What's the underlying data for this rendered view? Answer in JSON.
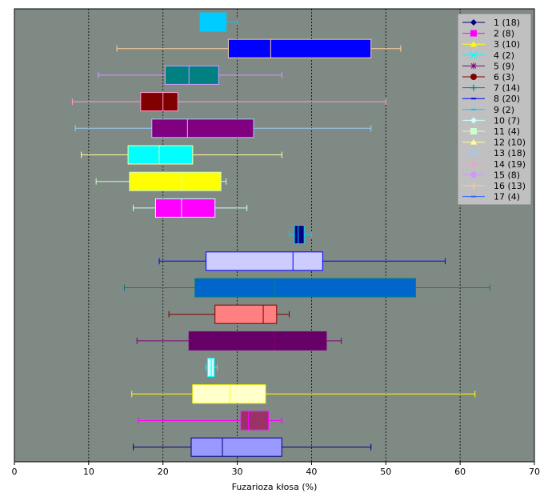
{
  "chart_data": {
    "type": "boxplot",
    "orientation": "horizontal",
    "xlabel": "Fuzarioza kłosa (%)",
    "xlim": [
      0,
      70
    ],
    "xticks": [
      0,
      10,
      20,
      30,
      40,
      50,
      60,
      70
    ],
    "grid": "x, dotted",
    "background": "#808a85",
    "legend_position": "top-right",
    "series": [
      {
        "name": "1 (18)",
        "color": "#000080",
        "marker": "diamond",
        "min": 16.0,
        "q1": 23.8,
        "median": 28.0,
        "q3": 36.0,
        "max": 48.0
      },
      {
        "name": "2 (8)",
        "color": "#ff00ff",
        "marker": "square",
        "min": 16.7,
        "q1": 30.5,
        "median": 31.5,
        "q3": 34.2,
        "max": 36.0
      },
      {
        "name": "3 (10)",
        "color": "#ffff00",
        "marker": "triangle",
        "min": 15.8,
        "q1": 24.0,
        "median": 29.0,
        "q3": 33.8,
        "max": 62.0
      },
      {
        "name": "4 (2)",
        "color": "#00ffff",
        "marker": "x",
        "min": 25.8,
        "q1": 26.0,
        "median": 26.5,
        "q3": 26.9,
        "max": 27.3
      },
      {
        "name": "5 (9)",
        "color": "#800080",
        "marker": "star",
        "min": 16.5,
        "q1": 23.5,
        "median": 35.0,
        "q3": 42.0,
        "max": 44.0
      },
      {
        "name": "6 (3)",
        "color": "#800000",
        "marker": "circle",
        "min": 20.8,
        "q1": 27.0,
        "median": 33.5,
        "q3": 35.3,
        "max": 37.0
      },
      {
        "name": "7 (14)",
        "color": "#008080",
        "marker": "plus",
        "min": 14.8,
        "q1": 24.3,
        "median": 35.0,
        "q3": 54.0,
        "max": 64.0
      },
      {
        "name": "8 (20)",
        "color": "#0000ff",
        "marker": "dash",
        "min": 19.5,
        "q1": 25.8,
        "median": 37.5,
        "q3": 41.5,
        "max": 58.0
      },
      {
        "name": "9 (2)",
        "color": "#00ccff",
        "marker": "dash",
        "min": 37.0,
        "q1": 37.7,
        "median": 38.2,
        "q3": 39.0,
        "max": 40.0
      },
      {
        "name": "10 (7)",
        "color": "#ccffff",
        "marker": "diamond",
        "min": 16.0,
        "q1": 19.0,
        "median": 22.5,
        "q3": 27.0,
        "max": 31.3
      },
      {
        "name": "11 (4)",
        "color": "#ccffcc",
        "marker": "square",
        "min": 11.0,
        "q1": 15.5,
        "median": 22.5,
        "q3": 27.8,
        "max": 28.5
      },
      {
        "name": "12 (10)",
        "color": "#ffff99",
        "marker": "triangle",
        "min": 9.0,
        "q1": 15.3,
        "median": 19.5,
        "q3": 24.0,
        "max": 36.0
      },
      {
        "name": "13 (18)",
        "color": "#99ccff",
        "marker": "x",
        "min": 8.2,
        "q1": 18.5,
        "median": 23.3,
        "q3": 32.2,
        "max": 48.0
      },
      {
        "name": "14 (19)",
        "color": "#ff99cc",
        "marker": "star",
        "min": 7.8,
        "q1": 17.0,
        "median": 20.0,
        "q3": 22.0,
        "max": 50.0
      },
      {
        "name": "15 (8)",
        "color": "#cc99ff",
        "marker": "circle",
        "min": 11.3,
        "q1": 20.3,
        "median": 23.5,
        "q3": 27.5,
        "max": 36.0
      },
      {
        "name": "16 (13)",
        "color": "#ffcc99",
        "marker": "plus",
        "min": 13.8,
        "q1": 28.8,
        "median": 34.5,
        "q3": 48.0,
        "max": 52.0
      },
      {
        "name": "17 (4)",
        "color": "#3366ff",
        "marker": "dash",
        "min": 25.0,
        "q1": 25.0,
        "median": 27.0,
        "q3": 28.5,
        "max": 30.0
      }
    ],
    "plot_rows": [
      {
        "box_color": "#00ccff",
        "whisker_color": "#00ccff",
        "min": 25.0,
        "q1": 25.0,
        "median": 27.0,
        "q3": 28.5,
        "max": 30.0
      },
      {
        "box_color": "#0000ff",
        "whisker_color": "#ffcc99",
        "min": 13.8,
        "q1": 28.8,
        "median": 34.5,
        "q3": 48.0,
        "max": 52.0
      },
      {
        "box_color": "#008080",
        "whisker_color": "#cc99ff",
        "min": 11.3,
        "q1": 20.3,
        "median": 23.5,
        "q3": 27.5,
        "max": 36.0
      },
      {
        "box_color": "#800000",
        "whisker_color": "#ff99cc",
        "min": 7.8,
        "q1": 17.0,
        "median": 20.0,
        "q3": 22.0,
        "max": 50.0
      },
      {
        "box_color": "#800080",
        "whisker_color": "#99ccff",
        "min": 8.2,
        "q1": 18.5,
        "median": 23.3,
        "q3": 32.2,
        "max": 48.0
      },
      {
        "box_color": "#00ffff",
        "whisker_color": "#ffff99",
        "min": 9.0,
        "q1": 15.3,
        "median": 19.5,
        "q3": 24.0,
        "max": 36.0
      },
      {
        "box_color": "#ffff00",
        "whisker_color": "#ccffcc",
        "min": 11.0,
        "q1": 15.5,
        "median": 22.5,
        "q3": 27.8,
        "max": 28.5
      },
      {
        "box_color": "#ff00ff",
        "whisker_color": "#ccffff",
        "min": 16.0,
        "q1": 19.0,
        "median": 22.5,
        "q3": 27.0,
        "max": 31.3
      },
      {
        "box_color": "#000080",
        "whisker_color": "#00ccff",
        "min": 37.0,
        "q1": 37.7,
        "median": 38.2,
        "q3": 39.0,
        "max": 40.0
      },
      {
        "box_color": "#ccccff",
        "whisker_color": "#0000ff",
        "min": 19.5,
        "q1": 25.8,
        "median": 37.5,
        "q3": 41.5,
        "max": 58.0
      },
      {
        "box_color": "#0066cc",
        "whisker_color": "#008080",
        "min": 14.8,
        "q1": 24.3,
        "median": 35.0,
        "q3": 54.0,
        "max": 64.0
      },
      {
        "box_color": "#ff8080",
        "whisker_color": "#800000",
        "min": 20.8,
        "q1": 27.0,
        "median": 33.5,
        "q3": 35.3,
        "max": 37.0
      },
      {
        "box_color": "#660066",
        "whisker_color": "#800080",
        "min": 16.5,
        "q1": 23.5,
        "median": 35.0,
        "q3": 42.0,
        "max": 44.0
      },
      {
        "box_color": "#ccffff",
        "whisker_color": "#00ffff",
        "min": 25.8,
        "q1": 26.0,
        "median": 26.5,
        "q3": 26.9,
        "max": 27.3
      },
      {
        "box_color": "#ffffcc",
        "whisker_color": "#ffff00",
        "min": 15.8,
        "q1": 24.0,
        "median": 29.0,
        "q3": 33.8,
        "max": 62.0
      },
      {
        "box_color": "#993366",
        "whisker_color": "#ff00ff",
        "min": 16.7,
        "q1": 30.5,
        "median": 31.5,
        "q3": 34.2,
        "max": 36.0
      },
      {
        "box_color": "#9999ff",
        "whisker_color": "#000080",
        "min": 16.0,
        "q1": 23.8,
        "median": 28.0,
        "q3": 36.0,
        "max": 48.0
      }
    ]
  }
}
